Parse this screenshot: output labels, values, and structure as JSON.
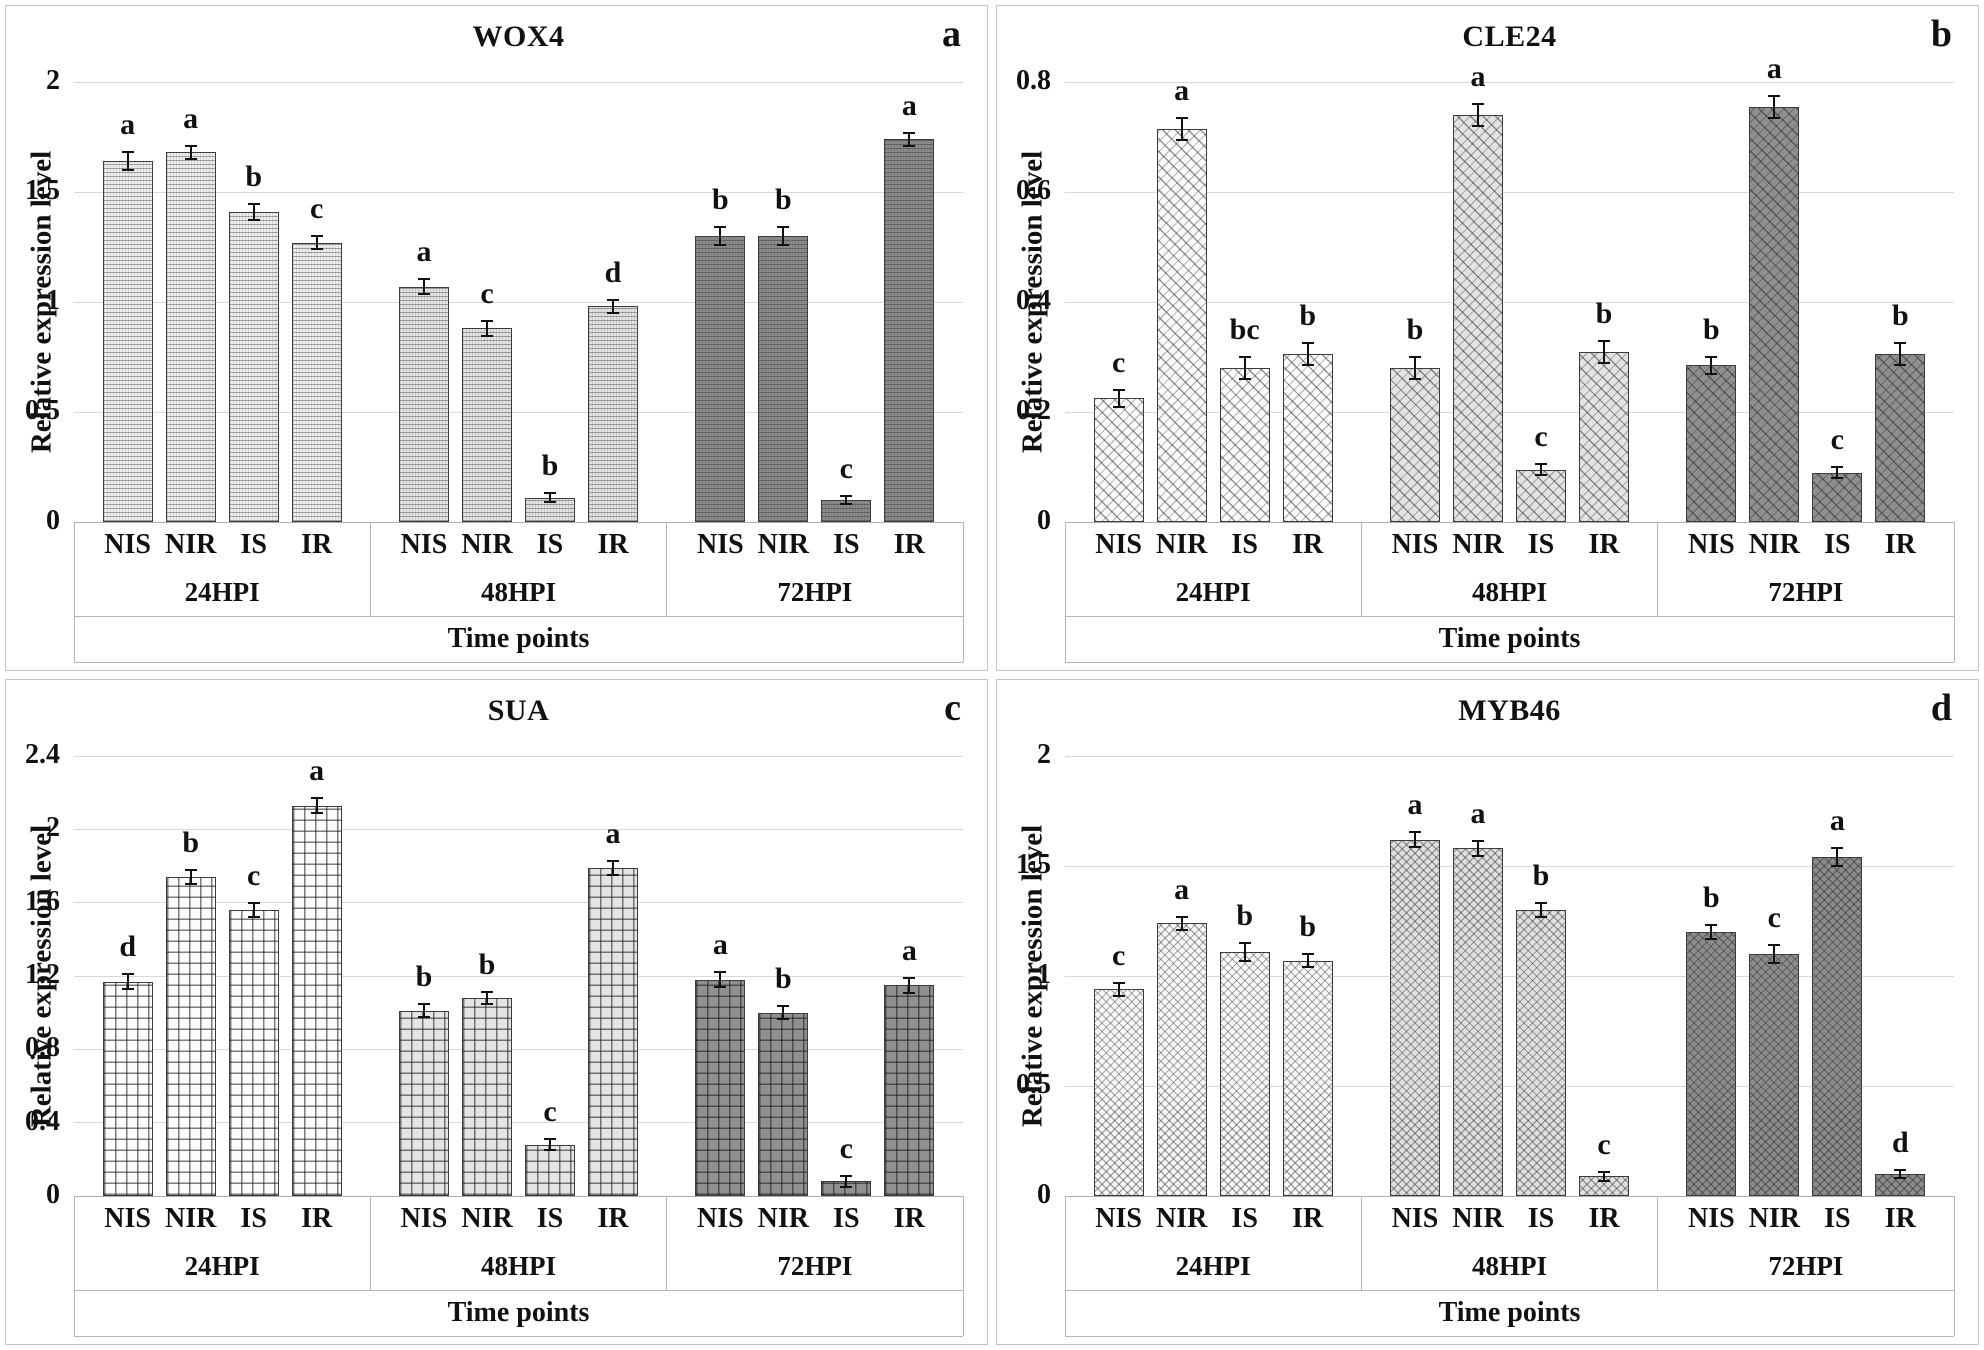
{
  "figure": {
    "background": "#ffffff",
    "panel_border": "#c4c4c4",
    "gridline_color": "#d9d9d9",
    "axis_line_color": "#aeaeae",
    "text_color": "#111111"
  },
  "chart_data": [
    {
      "type": "bar",
      "panel_letter": "a",
      "title": "WOX4",
      "ylabel": "Relative expression level",
      "xlabel": "Time points",
      "ylim": [
        0,
        2
      ],
      "yticks": [
        0,
        0.5,
        1,
        1.5,
        2
      ],
      "ytick_labels": [
        "0",
        "0.5",
        "1",
        "1.5",
        "2"
      ],
      "categories": [
        "NIS",
        "NIR",
        "IS",
        "IR"
      ],
      "grid": "horizontal",
      "legend": "none",
      "pattern": "wave",
      "group_fills": [
        "#ededed",
        "#e3e3e3",
        "#8a8a8a"
      ],
      "groups": [
        {
          "label": "24HPI",
          "bars": [
            {
              "category": "NIS",
              "value": 1.64,
              "err": 0.04,
              "letter": "a"
            },
            {
              "category": "NIR",
              "value": 1.68,
              "err": 0.03,
              "letter": "a"
            },
            {
              "category": "IS",
              "value": 1.41,
              "err": 0.035,
              "letter": "b"
            },
            {
              "category": "IR",
              "value": 1.27,
              "err": 0.03,
              "letter": "c"
            }
          ]
        },
        {
          "label": "48HPI",
          "bars": [
            {
              "category": "NIS",
              "value": 1.07,
              "err": 0.035,
              "letter": "a"
            },
            {
              "category": "NIR",
              "value": 0.88,
              "err": 0.035,
              "letter": "c"
            },
            {
              "category": "IS",
              "value": 0.11,
              "err": 0.02,
              "letter": "b"
            },
            {
              "category": "IR",
              "value": 0.98,
              "err": 0.03,
              "letter": "d"
            }
          ]
        },
        {
          "label": "72HPI",
          "bars": [
            {
              "category": "NIS",
              "value": 1.3,
              "err": 0.04,
              "letter": "b"
            },
            {
              "category": "NIR",
              "value": 1.3,
              "err": 0.04,
              "letter": "b"
            },
            {
              "category": "IS",
              "value": 0.1,
              "err": 0.02,
              "letter": "c"
            },
            {
              "category": "IR",
              "value": 1.74,
              "err": 0.03,
              "letter": "a"
            }
          ]
        }
      ]
    },
    {
      "type": "bar",
      "panel_letter": "b",
      "title": "CLE24",
      "ylabel": "Relative expression level",
      "xlabel": "Time points",
      "ylim": [
        0,
        0.8
      ],
      "yticks": [
        0,
        0.2,
        0.4,
        0.6,
        0.8
      ],
      "ytick_labels": [
        "0",
        "0.2",
        "0.4",
        "0.6",
        "0.8"
      ],
      "categories": [
        "NIS",
        "NIR",
        "IS",
        "IR"
      ],
      "grid": "horizontal",
      "legend": "none",
      "pattern": "brick",
      "group_fills": [
        "#fbfbfb",
        "#e3e3e3",
        "#8f8f8f"
      ],
      "groups": [
        {
          "label": "24HPI",
          "bars": [
            {
              "category": "NIS",
              "value": 0.225,
              "err": 0.015,
              "letter": "c"
            },
            {
              "category": "NIR",
              "value": 0.715,
              "err": 0.02,
              "letter": "a"
            },
            {
              "category": "IS",
              "value": 0.28,
              "err": 0.02,
              "letter": "bc"
            },
            {
              "category": "IR",
              "value": 0.305,
              "err": 0.02,
              "letter": "b"
            }
          ]
        },
        {
          "label": "48HPI",
          "bars": [
            {
              "category": "NIS",
              "value": 0.28,
              "err": 0.02,
              "letter": "b"
            },
            {
              "category": "NIR",
              "value": 0.74,
              "err": 0.02,
              "letter": "a"
            },
            {
              "category": "IS",
              "value": 0.095,
              "err": 0.01,
              "letter": "c"
            },
            {
              "category": "IR",
              "value": 0.31,
              "err": 0.02,
              "letter": "b"
            }
          ]
        },
        {
          "label": "72HPI",
          "bars": [
            {
              "category": "NIS",
              "value": 0.285,
              "err": 0.015,
              "letter": "b"
            },
            {
              "category": "NIR",
              "value": 0.755,
              "err": 0.02,
              "letter": "a"
            },
            {
              "category": "IS",
              "value": 0.09,
              "err": 0.01,
              "letter": "c"
            },
            {
              "category": "IR",
              "value": 0.305,
              "err": 0.02,
              "letter": "b"
            }
          ]
        }
      ]
    },
    {
      "type": "bar",
      "panel_letter": "c",
      "title": "SUA",
      "ylabel": "Relative expression level",
      "xlabel": "Time points",
      "ylim": [
        0,
        2.4
      ],
      "yticks": [
        0,
        0.4,
        0.8,
        1.2,
        1.6,
        2,
        2.4
      ],
      "ytick_labels": [
        "0",
        "0.4",
        "0.8",
        "1.2",
        "1.6",
        "2",
        "2.4"
      ],
      "categories": [
        "NIS",
        "NIR",
        "IS",
        "IR"
      ],
      "grid": "horizontal",
      "legend": "none",
      "pattern": "grid",
      "group_fills": [
        "#fcfcfc",
        "#e4e4e4",
        "#909090"
      ],
      "groups": [
        {
          "label": "24HPI",
          "bars": [
            {
              "category": "NIS",
              "value": 1.17,
              "err": 0.04,
              "letter": "d"
            },
            {
              "category": "NIR",
              "value": 1.74,
              "err": 0.04,
              "letter": "b"
            },
            {
              "category": "IS",
              "value": 1.56,
              "err": 0.04,
              "letter": "c"
            },
            {
              "category": "IR",
              "value": 2.13,
              "err": 0.04,
              "letter": "a"
            }
          ]
        },
        {
          "label": "48HPI",
          "bars": [
            {
              "category": "NIS",
              "value": 1.01,
              "err": 0.035,
              "letter": "b"
            },
            {
              "category": "NIR",
              "value": 1.08,
              "err": 0.035,
              "letter": "b"
            },
            {
              "category": "IS",
              "value": 0.28,
              "err": 0.03,
              "letter": "c"
            },
            {
              "category": "IR",
              "value": 1.79,
              "err": 0.04,
              "letter": "a"
            }
          ]
        },
        {
          "label": "72HPI",
          "bars": [
            {
              "category": "NIS",
              "value": 1.18,
              "err": 0.04,
              "letter": "a"
            },
            {
              "category": "NIR",
              "value": 1.0,
              "err": 0.035,
              "letter": "b"
            },
            {
              "category": "IS",
              "value": 0.08,
              "err": 0.03,
              "letter": "c"
            },
            {
              "category": "IR",
              "value": 1.15,
              "err": 0.04,
              "letter": "a"
            }
          ]
        }
      ]
    },
    {
      "type": "bar",
      "panel_letter": "d",
      "title": "MYB46",
      "ylabel": "Relative expression level",
      "xlabel": "Time points",
      "ylim": [
        0,
        2
      ],
      "yticks": [
        0,
        0.5,
        1,
        1.5,
        2
      ],
      "ytick_labels": [
        "0",
        "0.5",
        "1",
        "1.5",
        "2"
      ],
      "categories": [
        "NIS",
        "NIR",
        "IS",
        "IR"
      ],
      "grid": "horizontal",
      "legend": "none",
      "pattern": "scale",
      "group_fills": [
        "#f8f8f8",
        "#e0e0e0",
        "#8c8c8c"
      ],
      "groups": [
        {
          "label": "24HPI",
          "bars": [
            {
              "category": "NIS",
              "value": 0.94,
              "err": 0.03,
              "letter": "c"
            },
            {
              "category": "NIR",
              "value": 1.24,
              "err": 0.03,
              "letter": "a"
            },
            {
              "category": "IS",
              "value": 1.11,
              "err": 0.04,
              "letter": "b"
            },
            {
              "category": "IR",
              "value": 1.07,
              "err": 0.03,
              "letter": "b"
            }
          ]
        },
        {
          "label": "48HPI",
          "bars": [
            {
              "category": "NIS",
              "value": 1.62,
              "err": 0.035,
              "letter": "a"
            },
            {
              "category": "NIR",
              "value": 1.58,
              "err": 0.035,
              "letter": "a"
            },
            {
              "category": "IS",
              "value": 1.3,
              "err": 0.03,
              "letter": "b"
            },
            {
              "category": "IR",
              "value": 0.09,
              "err": 0.02,
              "letter": "c"
            }
          ]
        },
        {
          "label": "72HPI",
          "bars": [
            {
              "category": "NIS",
              "value": 1.2,
              "err": 0.03,
              "letter": "b"
            },
            {
              "category": "NIR",
              "value": 1.1,
              "err": 0.04,
              "letter": "c"
            },
            {
              "category": "IS",
              "value": 1.54,
              "err": 0.04,
              "letter": "a"
            },
            {
              "category": "IR",
              "value": 0.1,
              "err": 0.02,
              "letter": "d"
            }
          ]
        }
      ]
    }
  ]
}
